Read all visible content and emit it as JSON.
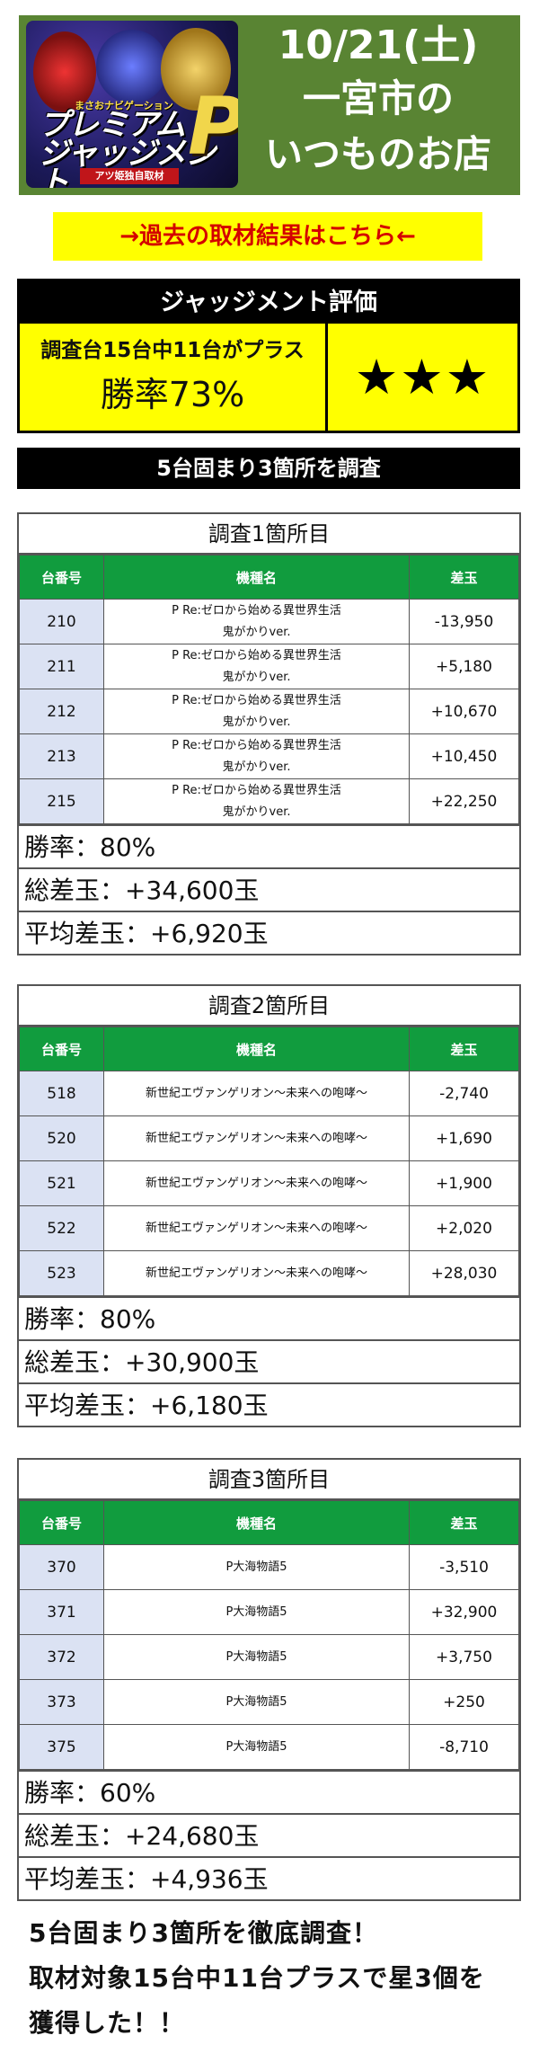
{
  "hero": {
    "logo": {
      "subtitle": "まさおナビゲーション",
      "title_line1": "プレミアム",
      "title_line2": "ジャッジメント",
      "letter": "P",
      "strip": "アツ姫独自取材"
    },
    "date": "10/21(土)",
    "line1": "一宮市の",
    "line2": "いつものお店"
  },
  "past_link": "→過去の取材結果はこちら←",
  "judgement": {
    "heading": "ジャッジメント評価",
    "summary": "調査台15台中11台がプラス",
    "win_rate": "勝率73%",
    "stars": "★★★"
  },
  "section_title": "5台固まり3箇所を調査",
  "columns": {
    "number": "台番号",
    "model": "機種名",
    "diff": "差玉"
  },
  "surveys": [
    {
      "title": "調査1箇所目",
      "rows": [
        {
          "number": "210",
          "model_line1": "P Re:ゼロから始める異世界生活",
          "model_line2": "鬼がかりver.",
          "diff": "-13,950"
        },
        {
          "number": "211",
          "model_line1": "P Re:ゼロから始める異世界生活",
          "model_line2": "鬼がかりver.",
          "diff": "+5,180"
        },
        {
          "number": "212",
          "model_line1": "P Re:ゼロから始める異世界生活",
          "model_line2": "鬼がかりver.",
          "diff": "+10,670"
        },
        {
          "number": "213",
          "model_line1": "P Re:ゼロから始める異世界生活",
          "model_line2": "鬼がかりver.",
          "diff": "+10,450"
        },
        {
          "number": "215",
          "model_line1": "P Re:ゼロから始める異世界生活",
          "model_line2": "鬼がかりver.",
          "diff": "+22,250"
        }
      ],
      "win_rate": "勝率：80%",
      "total": "総差玉：+34,600玉",
      "average": "平均差玉：+6,920玉"
    },
    {
      "title": "調査2箇所目",
      "rows": [
        {
          "number": "518",
          "model_line1": "新世紀エヴァンゲリオン～未来への咆哮～",
          "model_line2": "",
          "diff": "-2,740"
        },
        {
          "number": "520",
          "model_line1": "新世紀エヴァンゲリオン～未来への咆哮～",
          "model_line2": "",
          "diff": "+1,690"
        },
        {
          "number": "521",
          "model_line1": "新世紀エヴァンゲリオン～未来への咆哮～",
          "model_line2": "",
          "diff": "+1,900"
        },
        {
          "number": "522",
          "model_line1": "新世紀エヴァンゲリオン～未来への咆哮～",
          "model_line2": "",
          "diff": "+2,020"
        },
        {
          "number": "523",
          "model_line1": "新世紀エヴァンゲリオン～未来への咆哮～",
          "model_line2": "",
          "diff": "+28,030"
        }
      ],
      "win_rate": "勝率：80%",
      "total": "総差玉：+30,900玉",
      "average": "平均差玉：+6,180玉"
    },
    {
      "title": "調査3箇所目",
      "rows": [
        {
          "number": "370",
          "model_line1": "P大海物語5",
          "model_line2": "",
          "diff": "-3,510"
        },
        {
          "number": "371",
          "model_line1": "P大海物語5",
          "model_line2": "",
          "diff": "+32,900"
        },
        {
          "number": "372",
          "model_line1": "P大海物語5",
          "model_line2": "",
          "diff": "+3,750"
        },
        {
          "number": "373",
          "model_line1": "P大海物語5",
          "model_line2": "",
          "diff": "+250"
        },
        {
          "number": "375",
          "model_line1": "P大海物語5",
          "model_line2": "",
          "diff": "-8,710"
        }
      ],
      "win_rate": "勝率：60%",
      "total": "総差玉：+24,680玉",
      "average": "平均差玉：+4,936玉"
    }
  ],
  "footer": {
    "line1": "5台固まり3箇所を徹底調査！",
    "line2": "取材対象15台中11台プラスで星3個を",
    "line3": "獲得した！！"
  },
  "colors": {
    "header_green": "#598433",
    "table_green": "#119c3e",
    "highlight_yellow": "#ffff00",
    "link_red": "#d40000",
    "number_cell": "#dbe2f3"
  }
}
